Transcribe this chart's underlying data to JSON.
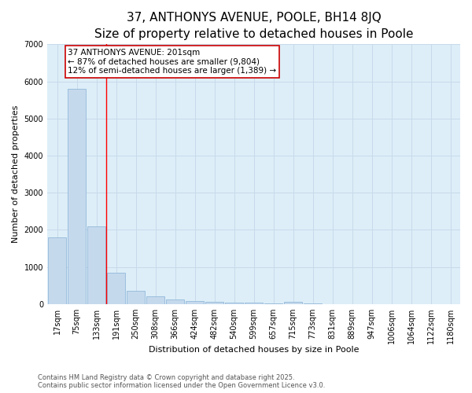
{
  "title": "37, ANTHONYS AVENUE, POOLE, BH14 8JQ",
  "subtitle": "Size of property relative to detached houses in Poole",
  "xlabel": "Distribution of detached houses by size in Poole",
  "ylabel": "Number of detached properties",
  "bar_labels": [
    "17sqm",
    "75sqm",
    "133sqm",
    "191sqm",
    "250sqm",
    "308sqm",
    "366sqm",
    "424sqm",
    "482sqm",
    "540sqm",
    "599sqm",
    "657sqm",
    "715sqm",
    "773sqm",
    "831sqm",
    "889sqm",
    "947sqm",
    "1006sqm",
    "1064sqm",
    "1122sqm",
    "1180sqm"
  ],
  "bar_values": [
    1800,
    5800,
    2100,
    850,
    360,
    210,
    120,
    90,
    70,
    50,
    35,
    20,
    70,
    8,
    5,
    4,
    3,
    2,
    2,
    1,
    1
  ],
  "bar_color": "#c5d9ed",
  "bar_edge_color": "#93b8d9",
  "red_line_index": 3,
  "annotation_text_line1": "37 ANTHONYS AVENUE: 201sqm",
  "annotation_text_line2": "← 87% of detached houses are smaller (9,804)",
  "annotation_text_line3": "12% of semi-detached houses are larger (1,389) →",
  "annotation_box_color": "#cc0000",
  "ylim": [
    0,
    7000
  ],
  "yticks": [
    0,
    1000,
    2000,
    3000,
    4000,
    5000,
    6000,
    7000
  ],
  "grid_color": "#c8daea",
  "background_color": "#ddeef8",
  "footer_line1": "Contains HM Land Registry data © Crown copyright and database right 2025.",
  "footer_line2": "Contains public sector information licensed under the Open Government Licence v3.0.",
  "title_fontsize": 11,
  "subtitle_fontsize": 9.5,
  "axis_label_fontsize": 8,
  "tick_fontsize": 7,
  "annotation_fontsize": 7.5,
  "footer_fontsize": 6
}
